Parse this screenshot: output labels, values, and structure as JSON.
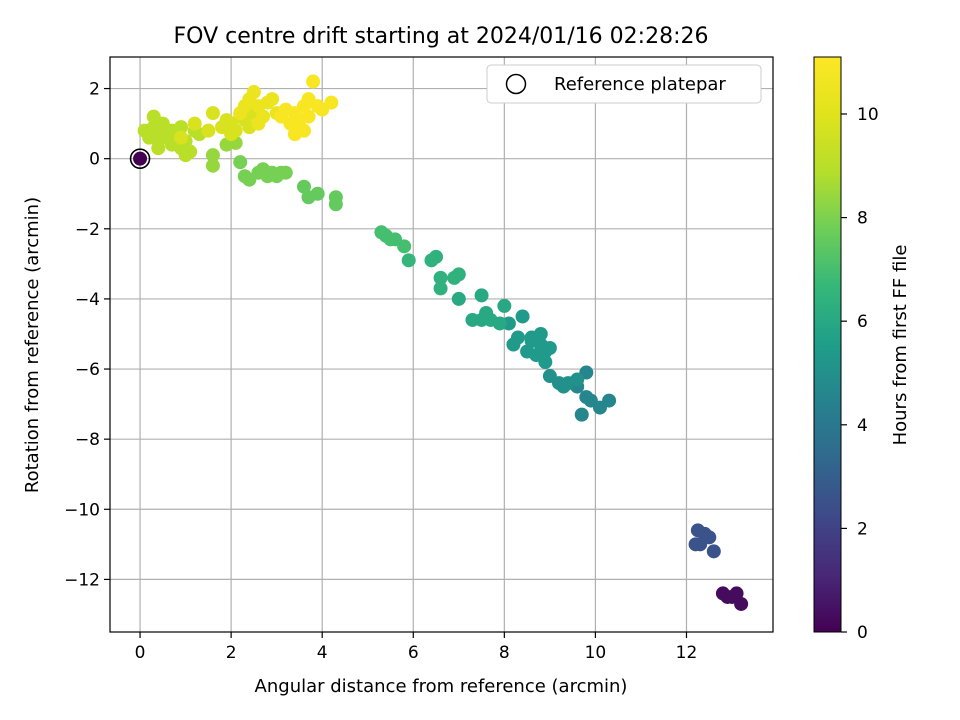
{
  "chart_data": {
    "type": "scatter",
    "title": "FOV centre drift starting at 2024/01/16 02:28:26",
    "xlabel": "Angular distance from reference (arcmin)",
    "ylabel": "Rotation from reference (arcmin)",
    "xlim": [
      -0.66,
      13.9
    ],
    "ylim": [
      -13.5,
      2.9
    ],
    "xticks": [
      "0",
      "2",
      "4",
      "6",
      "8",
      "10",
      "12"
    ],
    "yticks": [
      "2",
      "0",
      "−2",
      "−4",
      "−6",
      "−8",
      "−10",
      "−12"
    ],
    "grid": true,
    "legend": {
      "position": "top-right",
      "entries": [
        "Reference platepar"
      ]
    },
    "reference_point": {
      "x": 0,
      "y": 0
    },
    "colorbar": {
      "label": "Hours from first FF file",
      "min": 0,
      "max": 11.1,
      "ticks": [
        "0",
        "2",
        "4",
        "6",
        "8",
        "10"
      ],
      "colormap": "viridis"
    },
    "points": [
      {
        "x": 0.0,
        "y": 0.0,
        "t": 0.0
      },
      {
        "x": 12.8,
        "y": -12.4,
        "t": 0.3
      },
      {
        "x": 12.9,
        "y": -12.5,
        "t": 0.3
      },
      {
        "x": 13.0,
        "y": -12.5,
        "t": 0.3
      },
      {
        "x": 13.1,
        "y": -12.4,
        "t": 0.3
      },
      {
        "x": 13.2,
        "y": -12.7,
        "t": 0.3
      },
      {
        "x": 12.25,
        "y": -10.6,
        "t": 2.6
      },
      {
        "x": 12.3,
        "y": -11.0,
        "t": 2.6
      },
      {
        "x": 12.4,
        "y": -10.7,
        "t": 2.6
      },
      {
        "x": 12.5,
        "y": -10.8,
        "t": 2.6
      },
      {
        "x": 12.6,
        "y": -11.2,
        "t": 2.6
      },
      {
        "x": 12.2,
        "y": -11.0,
        "t": 2.6
      },
      {
        "x": 9.8,
        "y": -6.1,
        "t": 4.6
      },
      {
        "x": 9.9,
        "y": -6.9,
        "t": 4.6
      },
      {
        "x": 10.1,
        "y": -7.1,
        "t": 4.6
      },
      {
        "x": 10.3,
        "y": -6.9,
        "t": 4.6
      },
      {
        "x": 9.7,
        "y": -7.3,
        "t": 4.6
      },
      {
        "x": 9.5,
        "y": -6.4,
        "t": 4.6
      },
      {
        "x": 9.6,
        "y": -6.5,
        "t": 4.6
      },
      {
        "x": 9.8,
        "y": -6.8,
        "t": 4.6
      },
      {
        "x": 9.0,
        "y": -6.2,
        "t": 5.0
      },
      {
        "x": 9.2,
        "y": -6.4,
        "t": 5.0
      },
      {
        "x": 9.3,
        "y": -6.5,
        "t": 5.0
      },
      {
        "x": 9.4,
        "y": -6.4,
        "t": 5.0
      },
      {
        "x": 9.6,
        "y": -6.3,
        "t": 5.0
      },
      {
        "x": 8.6,
        "y": -5.2,
        "t": 5.4
      },
      {
        "x": 8.8,
        "y": -5.3,
        "t": 5.4
      },
      {
        "x": 8.9,
        "y": -5.5,
        "t": 5.4
      },
      {
        "x": 8.7,
        "y": -5.6,
        "t": 5.4
      },
      {
        "x": 8.5,
        "y": -5.5,
        "t": 5.4
      },
      {
        "x": 9.0,
        "y": -5.4,
        "t": 5.4
      },
      {
        "x": 8.9,
        "y": -5.8,
        "t": 5.4
      },
      {
        "x": 8.3,
        "y": -5.1,
        "t": 5.4
      },
      {
        "x": 8.1,
        "y": -4.7,
        "t": 5.4
      },
      {
        "x": 8.4,
        "y": -4.5,
        "t": 5.4
      },
      {
        "x": 8.6,
        "y": -5.1,
        "t": 5.4
      },
      {
        "x": 8.8,
        "y": -5.0,
        "t": 5.4
      },
      {
        "x": 8.2,
        "y": -5.3,
        "t": 5.4
      },
      {
        "x": 7.3,
        "y": -4.6,
        "t": 6.0
      },
      {
        "x": 7.5,
        "y": -4.6,
        "t": 6.0
      },
      {
        "x": 7.6,
        "y": -4.4,
        "t": 6.0
      },
      {
        "x": 7.7,
        "y": -4.6,
        "t": 6.0
      },
      {
        "x": 7.9,
        "y": -4.7,
        "t": 6.0
      },
      {
        "x": 8.0,
        "y": -4.2,
        "t": 6.0
      },
      {
        "x": 7.5,
        "y": -3.9,
        "t": 6.0
      },
      {
        "x": 7.0,
        "y": -4.0,
        "t": 6.0
      },
      {
        "x": 6.6,
        "y": -3.4,
        "t": 6.4
      },
      {
        "x": 6.6,
        "y": -3.7,
        "t": 6.4
      },
      {
        "x": 6.9,
        "y": -3.4,
        "t": 6.4
      },
      {
        "x": 7.0,
        "y": -3.3,
        "t": 6.4
      },
      {
        "x": 6.5,
        "y": -2.8,
        "t": 6.4
      },
      {
        "x": 6.4,
        "y": -2.9,
        "t": 6.4
      },
      {
        "x": 5.9,
        "y": -2.9,
        "t": 6.6
      },
      {
        "x": 5.3,
        "y": -2.1,
        "t": 7.0
      },
      {
        "x": 5.4,
        "y": -2.2,
        "t": 7.0
      },
      {
        "x": 5.5,
        "y": -2.3,
        "t": 7.0
      },
      {
        "x": 5.6,
        "y": -2.3,
        "t": 7.0
      },
      {
        "x": 5.8,
        "y": -2.5,
        "t": 7.0
      },
      {
        "x": 4.3,
        "y": -1.1,
        "t": 7.6
      },
      {
        "x": 4.3,
        "y": -1.3,
        "t": 7.6
      },
      {
        "x": 3.9,
        "y": -1.0,
        "t": 7.6
      },
      {
        "x": 3.7,
        "y": -1.1,
        "t": 7.6
      },
      {
        "x": 3.6,
        "y": -0.8,
        "t": 7.6
      },
      {
        "x": 2.7,
        "y": -0.3,
        "t": 7.9
      },
      {
        "x": 2.9,
        "y": -0.4,
        "t": 7.9
      },
      {
        "x": 3.1,
        "y": -0.4,
        "t": 7.9
      },
      {
        "x": 3.2,
        "y": -0.4,
        "t": 7.9
      },
      {
        "x": 2.8,
        "y": -0.5,
        "t": 7.9
      },
      {
        "x": 2.6,
        "y": -0.4,
        "t": 7.9
      },
      {
        "x": 3.0,
        "y": -0.5,
        "t": 7.9
      },
      {
        "x": 2.3,
        "y": -0.5,
        "t": 7.9
      },
      {
        "x": 2.2,
        "y": -0.1,
        "t": 7.9
      },
      {
        "x": 2.4,
        "y": -0.6,
        "t": 7.9
      },
      {
        "x": 1.6,
        "y": 0.1,
        "t": 8.4
      },
      {
        "x": 1.6,
        "y": -0.2,
        "t": 8.4
      },
      {
        "x": 1.9,
        "y": 0.4,
        "t": 8.4
      },
      {
        "x": 2.1,
        "y": 0.45,
        "t": 8.4
      },
      {
        "x": 0.1,
        "y": 0.8,
        "t": 9.0
      },
      {
        "x": 0.2,
        "y": 0.6,
        "t": 9.0
      },
      {
        "x": 0.3,
        "y": 0.9,
        "t": 9.0
      },
      {
        "x": 0.4,
        "y": 0.6,
        "t": 9.0
      },
      {
        "x": 0.4,
        "y": 0.3,
        "t": 9.0
      },
      {
        "x": 0.5,
        "y": 0.8,
        "t": 9.0
      },
      {
        "x": 0.6,
        "y": 0.6,
        "t": 9.0
      },
      {
        "x": 0.7,
        "y": 0.4,
        "t": 9.0
      },
      {
        "x": 0.8,
        "y": 0.7,
        "t": 9.0
      },
      {
        "x": 0.9,
        "y": 0.9,
        "t": 9.0
      },
      {
        "x": 1.0,
        "y": 0.5,
        "t": 9.0
      },
      {
        "x": 1.1,
        "y": 0.2,
        "t": 9.0
      },
      {
        "x": 0.3,
        "y": 1.2,
        "t": 9.0
      },
      {
        "x": 0.5,
        "y": 1.0,
        "t": 9.0
      },
      {
        "x": 1.2,
        "y": 0.8,
        "t": 9.0
      },
      {
        "x": 1.0,
        "y": 0.1,
        "t": 9.0
      },
      {
        "x": 0.7,
        "y": 0.8,
        "t": 9.0
      },
      {
        "x": 0.4,
        "y": 0.5,
        "t": 9.0
      },
      {
        "x": 0.9,
        "y": 0.3,
        "t": 9.0
      },
      {
        "x": 1.3,
        "y": 0.7,
        "t": 9.0
      },
      {
        "x": 1.5,
        "y": 0.8,
        "t": 9.8
      },
      {
        "x": 1.6,
        "y": 1.3,
        "t": 9.8
      },
      {
        "x": 1.8,
        "y": 0.9,
        "t": 9.8
      },
      {
        "x": 1.9,
        "y": 1.1,
        "t": 9.8
      },
      {
        "x": 2.0,
        "y": 1.0,
        "t": 9.8
      },
      {
        "x": 2.1,
        "y": 0.8,
        "t": 9.8
      },
      {
        "x": 2.2,
        "y": 1.2,
        "t": 9.8
      },
      {
        "x": 2.3,
        "y": 1.1,
        "t": 9.8
      },
      {
        "x": 2.4,
        "y": 0.9,
        "t": 9.8
      },
      {
        "x": 2.5,
        "y": 1.3,
        "t": 9.8
      },
      {
        "x": 0.9,
        "y": 0.6,
        "t": 9.8
      },
      {
        "x": 1.2,
        "y": 1.0,
        "t": 9.8
      },
      {
        "x": 2.0,
        "y": 0.7,
        "t": 9.8
      },
      {
        "x": 2.3,
        "y": 1.5,
        "t": 10.4
      },
      {
        "x": 2.4,
        "y": 1.7,
        "t": 10.4
      },
      {
        "x": 2.5,
        "y": 1.9,
        "t": 10.4
      },
      {
        "x": 2.6,
        "y": 1.5,
        "t": 10.4
      },
      {
        "x": 2.7,
        "y": 1.2,
        "t": 10.4
      },
      {
        "x": 2.8,
        "y": 1.6,
        "t": 10.4
      },
      {
        "x": 2.9,
        "y": 1.7,
        "t": 10.4
      },
      {
        "x": 3.0,
        "y": 1.3,
        "t": 10.4
      },
      {
        "x": 2.6,
        "y": 1.0,
        "t": 10.4
      },
      {
        "x": 2.2,
        "y": 1.3,
        "t": 10.4
      },
      {
        "x": 3.1,
        "y": 1.2,
        "t": 10.9
      },
      {
        "x": 3.2,
        "y": 1.4,
        "t": 10.9
      },
      {
        "x": 3.3,
        "y": 1.0,
        "t": 10.9
      },
      {
        "x": 3.4,
        "y": 1.3,
        "t": 10.9
      },
      {
        "x": 3.5,
        "y": 0.8,
        "t": 10.9
      },
      {
        "x": 3.6,
        "y": 1.5,
        "t": 10.9
      },
      {
        "x": 3.7,
        "y": 1.7,
        "t": 10.9
      },
      {
        "x": 3.8,
        "y": 2.2,
        "t": 10.9
      },
      {
        "x": 3.9,
        "y": 1.5,
        "t": 10.9
      },
      {
        "x": 4.0,
        "y": 1.4,
        "t": 10.9
      },
      {
        "x": 4.2,
        "y": 1.6,
        "t": 10.9
      },
      {
        "x": 3.6,
        "y": 0.8,
        "t": 10.9
      },
      {
        "x": 3.5,
        "y": 1.1,
        "t": 10.9
      },
      {
        "x": 3.4,
        "y": 0.7,
        "t": 10.9
      },
      {
        "x": 3.7,
        "y": 1.2,
        "t": 10.9
      }
    ]
  }
}
